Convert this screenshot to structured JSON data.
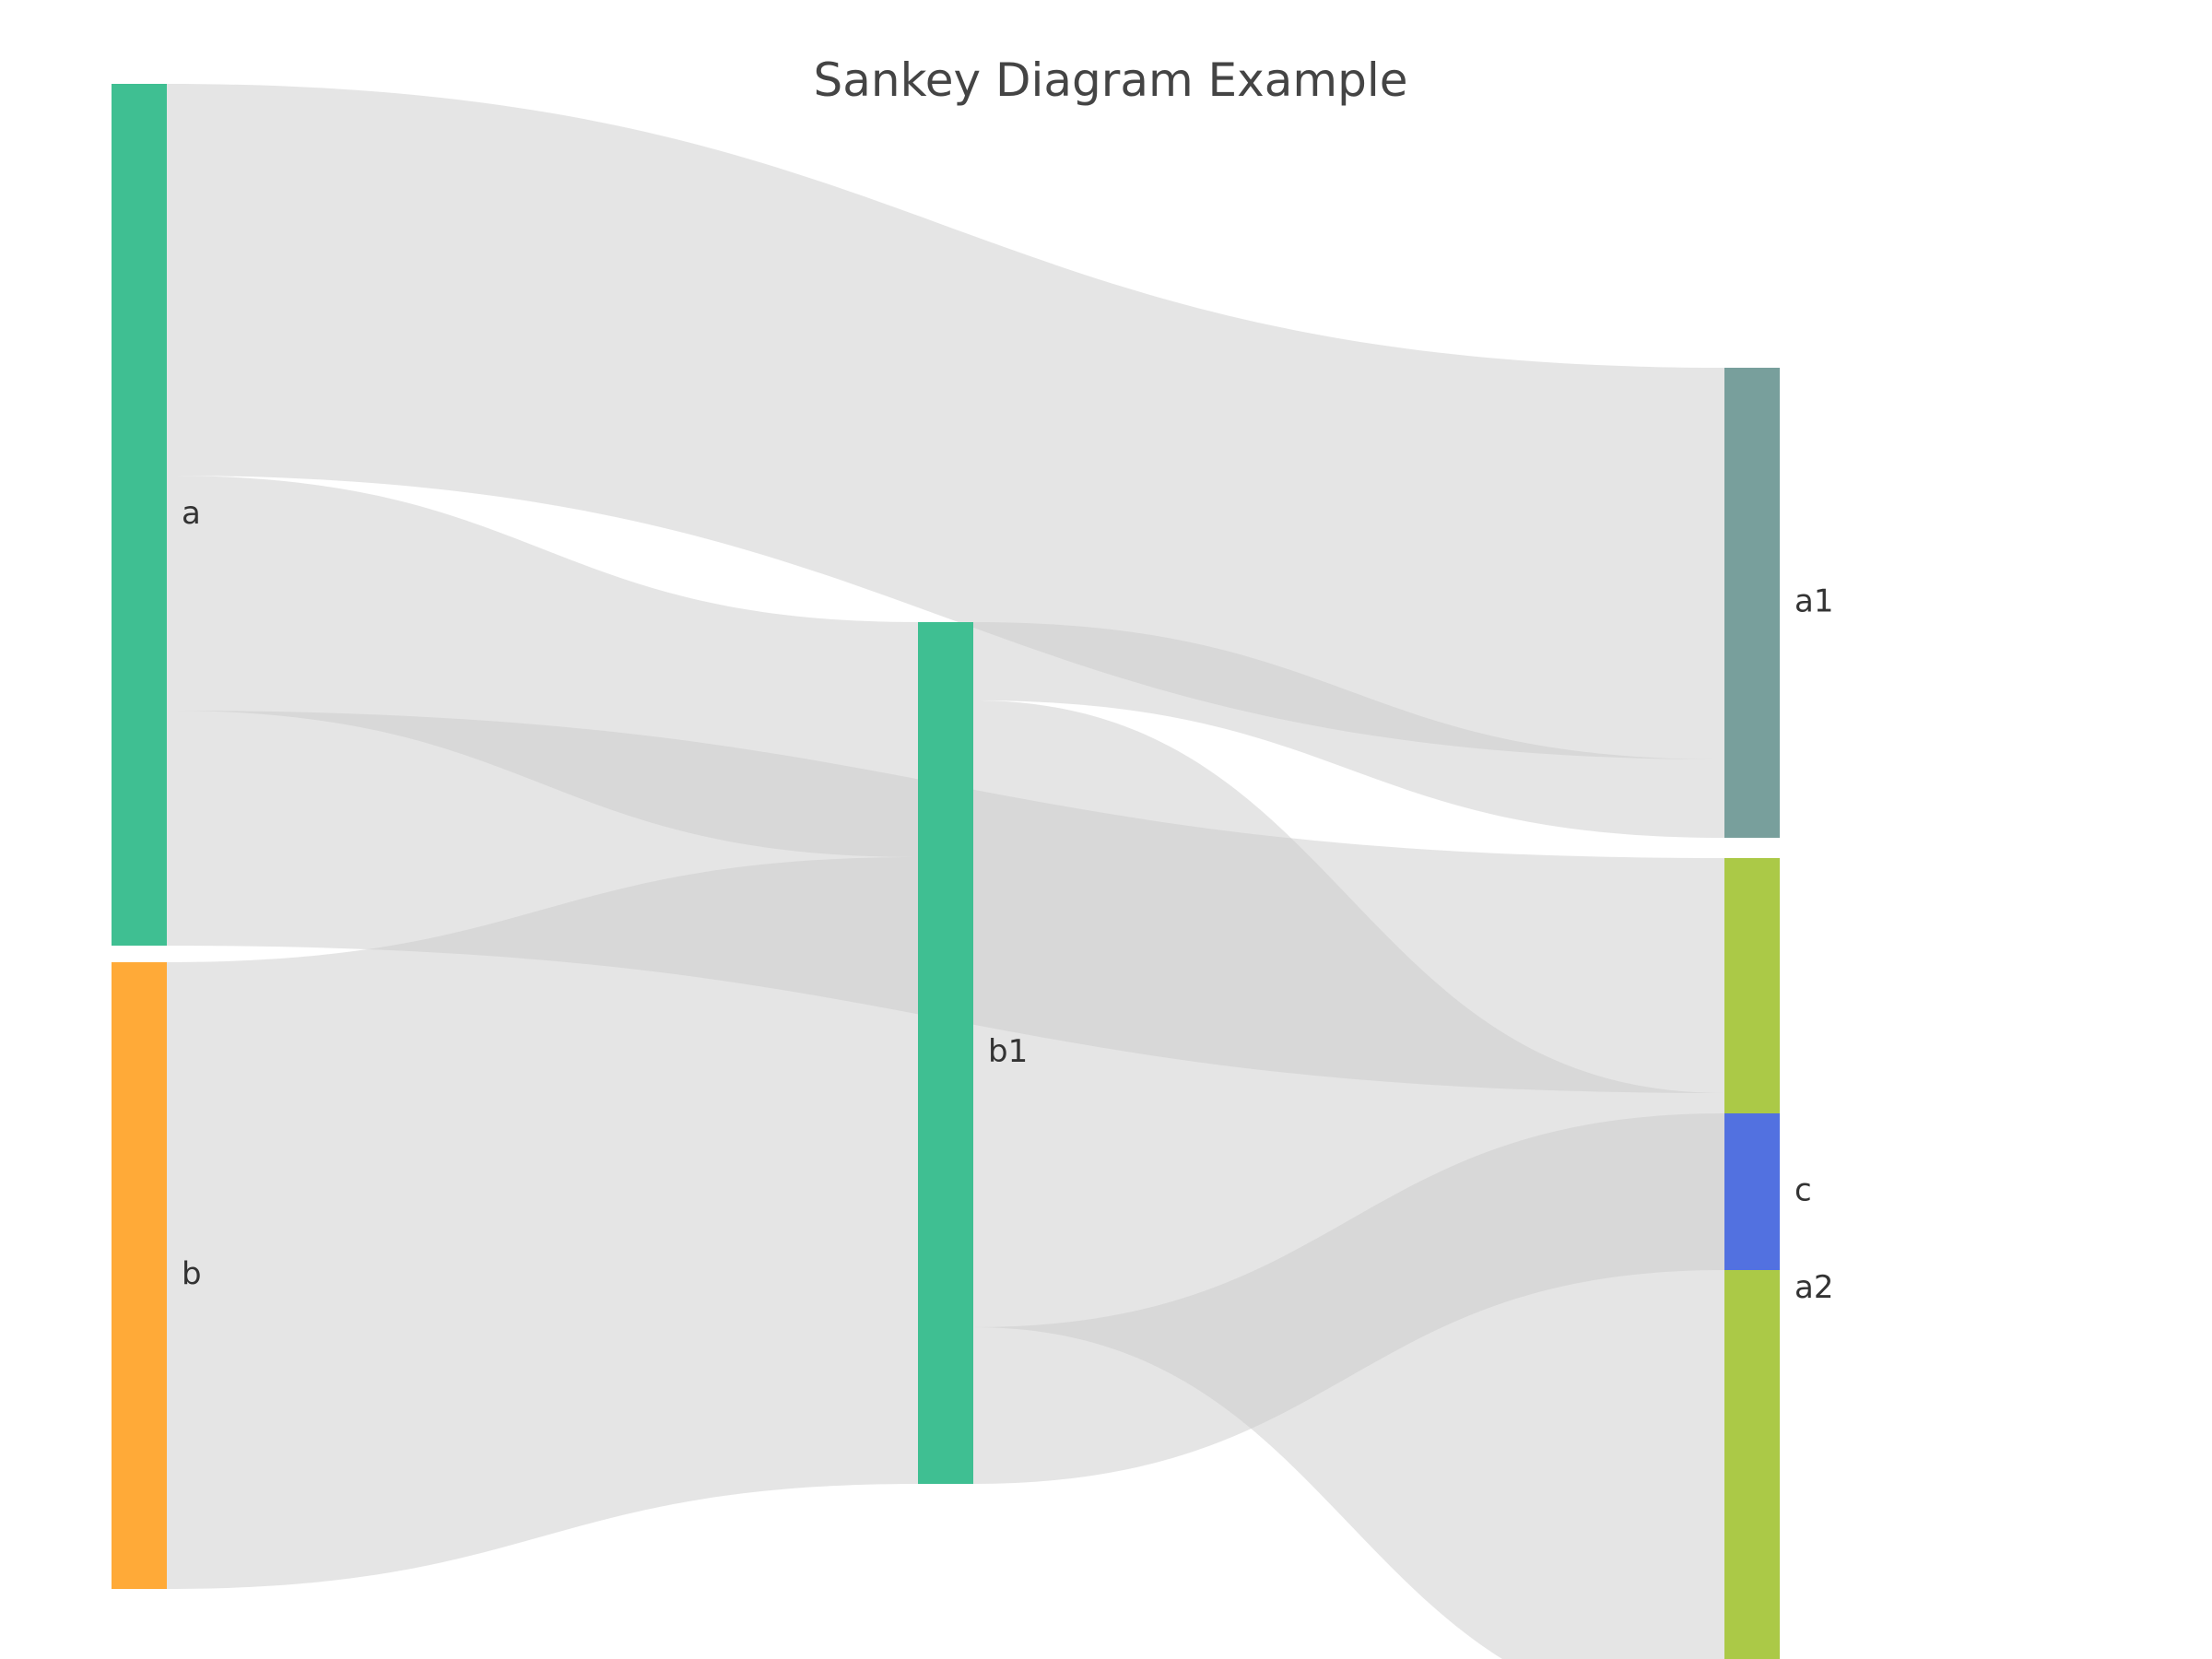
{
  "title": "Sankey Diagram Example",
  "chart_data": {
    "type": "sankey",
    "title": "Sankey Diagram Example",
    "nodes": [
      {
        "id": "a",
        "label": "a",
        "color": "#3fbf92"
      },
      {
        "id": "b",
        "label": "b",
        "color": "#ffaa38"
      },
      {
        "id": "b1",
        "label": "b1",
        "color": "#3fbf92"
      },
      {
        "id": "a1",
        "label": "a1",
        "color": "#789f9c"
      },
      {
        "id": "a2",
        "label": "a2",
        "color": "#abc947"
      },
      {
        "id": "c",
        "label": "c",
        "color": "#5271e0"
      }
    ],
    "links": [
      {
        "source": "a",
        "target": "a1",
        "value": 5
      },
      {
        "source": "a",
        "target": "b1",
        "value": 3
      },
      {
        "source": "a",
        "target": "a2",
        "value": 3
      },
      {
        "source": "b",
        "target": "b1",
        "value": 8
      },
      {
        "source": "b1",
        "target": "a1",
        "value": 1
      },
      {
        "source": "b1",
        "target": "c",
        "value": 2
      },
      {
        "source": "b1",
        "target": "a2",
        "value": 8
      }
    ],
    "link_color": "#cccccc"
  }
}
